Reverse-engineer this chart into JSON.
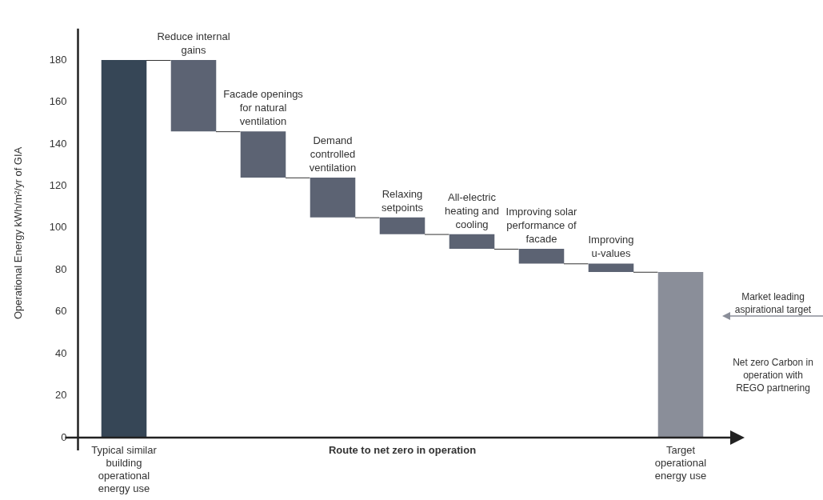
{
  "chart_data": {
    "type": "bar",
    "categories": [
      "Typical similar building operational energy use",
      "Reduce internal gains",
      "Facade openings for natural ventilation",
      "Demand controlled ventilation",
      "Relaxing setpoints",
      "All-electric heating and cooling",
      "Improving solar performance of facade",
      "Improving u-values",
      "Target operational energy use"
    ],
    "base": [
      0,
      180,
      146,
      124,
      105,
      97,
      90,
      83,
      0
    ],
    "values": [
      180,
      -34,
      -22,
      -19,
      -8,
      -7,
      -7,
      -4,
      79
    ],
    "colors": [
      "#364656",
      "#5c6373",
      "#5c6373",
      "#5c6373",
      "#5c6373",
      "#5c6373",
      "#5c6373",
      "#5c6373",
      "#8a8e99"
    ],
    "xlabel": "Route to net zero in operation",
    "ylabel": "Operational Energy kWh/m²/yr of GIA",
    "ylim": [
      0,
      195
    ],
    "yticks": [
      0,
      20,
      40,
      60,
      80,
      100,
      120,
      140,
      160,
      180
    ],
    "grid": false,
    "legend": false,
    "annotations": [
      "Market leading aspirational target",
      "Net zero Carbon in operation with REGO partnering"
    ]
  }
}
